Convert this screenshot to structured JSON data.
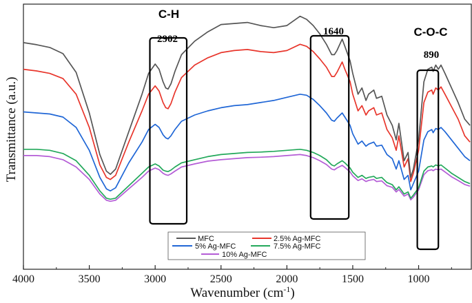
{
  "chart_data": {
    "type": "line",
    "title": "",
    "xlabel": "Wavenumber (cm",
    "xlabel_sup": "-1",
    "xlabel_close": ")",
    "ylabel": "Transmittance (a.u.)",
    "xlim": [
      4000,
      600
    ],
    "ylim": [
      0,
      1
    ],
    "y_ticks_shown": false,
    "x_ticks": [
      4000,
      3500,
      3000,
      2500,
      2000,
      1500,
      1000
    ],
    "x_tick_labels": [
      "4000",
      "3500",
      "3000",
      "2500",
      "2000",
      "1500",
      "1000"
    ],
    "annotations": [
      {
        "label": "C-H",
        "peak": "2902",
        "range": [
          3040,
          2760
        ]
      },
      {
        "label": "",
        "peak": "1640",
        "range": [
          1820,
          1530
        ]
      },
      {
        "label": "C-O-C",
        "peak": "890",
        "range": [
          1010,
          850
        ]
      }
    ],
    "legend_position": "bottom-center",
    "series": [
      {
        "name": "MFC",
        "color": "#555555",
        "x": [
          4000,
          3900,
          3800,
          3700,
          3600,
          3500,
          3420,
          3370,
          3340,
          3300,
          3200,
          3100,
          3050,
          3000,
          2970,
          2940,
          2920,
          2902,
          2880,
          2850,
          2800,
          2700,
          2600,
          2500,
          2400,
          2300,
          2200,
          2100,
          2000,
          1900,
          1850,
          1800,
          1750,
          1700,
          1660,
          1640,
          1620,
          1580,
          1560,
          1520,
          1500,
          1460,
          1430,
          1400,
          1380,
          1340,
          1320,
          1280,
          1240,
          1200,
          1170,
          1150,
          1110,
          1080,
          1060,
          1040,
          1000,
          960,
          930,
          900,
          890,
          870,
          850,
          830,
          800,
          750,
          700,
          650,
          610
        ],
        "y": [
          0.848,
          0.838,
          0.825,
          0.795,
          0.705,
          0.51,
          0.31,
          0.23,
          0.215,
          0.24,
          0.42,
          0.6,
          0.7,
          0.745,
          0.72,
          0.66,
          0.63,
          0.625,
          0.65,
          0.71,
          0.79,
          0.855,
          0.9,
          0.935,
          0.94,
          0.945,
          0.93,
          0.92,
          0.93,
          0.975,
          0.96,
          0.93,
          0.89,
          0.84,
          0.79,
          0.79,
          0.81,
          0.865,
          0.83,
          0.76,
          0.7,
          0.6,
          0.63,
          0.57,
          0.6,
          0.62,
          0.58,
          0.59,
          0.5,
          0.45,
          0.38,
          0.46,
          0.28,
          0.32,
          0.2,
          0.24,
          0.38,
          0.66,
          0.72,
          0.73,
          0.71,
          0.74,
          0.72,
          0.74,
          0.7,
          0.63,
          0.56,
          0.48,
          0.45
        ]
      },
      {
        "name": "2.5% Ag-MFC",
        "color": "#e8352b",
        "x": [
          4000,
          3900,
          3800,
          3700,
          3600,
          3500,
          3420,
          3370,
          3340,
          3300,
          3200,
          3100,
          3050,
          3000,
          2970,
          2940,
          2920,
          2902,
          2880,
          2850,
          2800,
          2700,
          2600,
          2500,
          2400,
          2300,
          2200,
          2100,
          2000,
          1900,
          1850,
          1800,
          1750,
          1700,
          1660,
          1640,
          1620,
          1580,
          1560,
          1520,
          1500,
          1460,
          1430,
          1400,
          1380,
          1340,
          1320,
          1280,
          1240,
          1200,
          1170,
          1150,
          1110,
          1080,
          1060,
          1040,
          1000,
          960,
          930,
          900,
          890,
          870,
          850,
          830,
          800,
          750,
          700,
          650,
          610
        ],
        "y": [
          0.72,
          0.712,
          0.7,
          0.675,
          0.6,
          0.44,
          0.26,
          0.2,
          0.19,
          0.21,
          0.37,
          0.52,
          0.6,
          0.64,
          0.615,
          0.56,
          0.535,
          0.53,
          0.555,
          0.61,
          0.68,
          0.74,
          0.775,
          0.8,
          0.81,
          0.815,
          0.805,
          0.8,
          0.81,
          0.84,
          0.83,
          0.805,
          0.77,
          0.73,
          0.685,
          0.685,
          0.705,
          0.755,
          0.72,
          0.66,
          0.6,
          0.52,
          0.545,
          0.5,
          0.52,
          0.535,
          0.5,
          0.51,
          0.43,
          0.39,
          0.33,
          0.4,
          0.25,
          0.29,
          0.18,
          0.22,
          0.33,
          0.56,
          0.61,
          0.62,
          0.6,
          0.63,
          0.62,
          0.635,
          0.6,
          0.54,
          0.48,
          0.4,
          0.37
        ]
      },
      {
        "name": "5% Ag-MFC",
        "color": "#1f66d6",
        "x": [
          4000,
          3900,
          3800,
          3700,
          3600,
          3500,
          3420,
          3370,
          3340,
          3300,
          3200,
          3100,
          3050,
          3000,
          2970,
          2940,
          2920,
          2902,
          2880,
          2850,
          2800,
          2700,
          2600,
          2500,
          2400,
          2300,
          2200,
          2100,
          2000,
          1900,
          1850,
          1800,
          1750,
          1700,
          1660,
          1640,
          1620,
          1580,
          1560,
          1520,
          1500,
          1460,
          1430,
          1400,
          1380,
          1340,
          1320,
          1280,
          1240,
          1200,
          1170,
          1150,
          1110,
          1080,
          1060,
          1040,
          1000,
          960,
          930,
          900,
          890,
          870,
          850,
          830,
          800,
          750,
          700,
          650,
          610
        ],
        "y": [
          0.515,
          0.51,
          0.505,
          0.49,
          0.44,
          0.33,
          0.2,
          0.145,
          0.135,
          0.15,
          0.27,
          0.37,
          0.43,
          0.455,
          0.44,
          0.405,
          0.39,
          0.385,
          0.4,
          0.43,
          0.47,
          0.5,
          0.52,
          0.535,
          0.545,
          0.55,
          0.56,
          0.57,
          0.585,
          0.6,
          0.595,
          0.575,
          0.545,
          0.51,
          0.475,
          0.47,
          0.485,
          0.51,
          0.49,
          0.45,
          0.41,
          0.36,
          0.375,
          0.35,
          0.36,
          0.37,
          0.35,
          0.355,
          0.31,
          0.29,
          0.24,
          0.28,
          0.19,
          0.21,
          0.14,
          0.17,
          0.23,
          0.38,
          0.42,
          0.43,
          0.415,
          0.435,
          0.43,
          0.44,
          0.42,
          0.38,
          0.34,
          0.3,
          0.28
        ]
      },
      {
        "name": "7.5% Ag-MFC",
        "color": "#22a85a",
        "x": [
          4000,
          3900,
          3800,
          3700,
          3600,
          3500,
          3420,
          3370,
          3340,
          3300,
          3200,
          3100,
          3050,
          3000,
          2970,
          2940,
          2920,
          2902,
          2880,
          2850,
          2800,
          2700,
          2600,
          2500,
          2400,
          2300,
          2200,
          2100,
          2000,
          1900,
          1850,
          1800,
          1750,
          1700,
          1660,
          1640,
          1620,
          1580,
          1560,
          1520,
          1500,
          1460,
          1430,
          1400,
          1380,
          1340,
          1320,
          1280,
          1240,
          1200,
          1170,
          1150,
          1110,
          1080,
          1060,
          1040,
          1000,
          960,
          930,
          900,
          890,
          870,
          850,
          830,
          800,
          750,
          700,
          650,
          610
        ],
        "y": [
          0.335,
          0.335,
          0.33,
          0.315,
          0.28,
          0.21,
          0.135,
          0.1,
          0.095,
          0.1,
          0.16,
          0.22,
          0.25,
          0.265,
          0.255,
          0.235,
          0.23,
          0.228,
          0.235,
          0.25,
          0.27,
          0.285,
          0.3,
          0.31,
          0.315,
          0.32,
          0.322,
          0.325,
          0.33,
          0.335,
          0.33,
          0.32,
          0.305,
          0.285,
          0.26,
          0.255,
          0.265,
          0.28,
          0.27,
          0.245,
          0.225,
          0.2,
          0.21,
          0.195,
          0.2,
          0.205,
          0.195,
          0.2,
          0.175,
          0.165,
          0.14,
          0.155,
          0.12,
          0.13,
          0.1,
          0.115,
          0.15,
          0.23,
          0.25,
          0.255,
          0.25,
          0.26,
          0.255,
          0.26,
          0.245,
          0.22,
          0.2,
          0.18,
          0.17
        ]
      },
      {
        "name": "10% Ag-MFC",
        "color": "#b45cd6",
        "x": [
          4000,
          3900,
          3800,
          3700,
          3600,
          3500,
          3420,
          3370,
          3340,
          3300,
          3200,
          3100,
          3050,
          3000,
          2970,
          2940,
          2920,
          2902,
          2880,
          2850,
          2800,
          2700,
          2600,
          2500,
          2400,
          2300,
          2200,
          2100,
          2000,
          1900,
          1850,
          1800,
          1750,
          1700,
          1660,
          1640,
          1620,
          1580,
          1560,
          1520,
          1500,
          1460,
          1430,
          1400,
          1380,
          1340,
          1320,
          1280,
          1240,
          1200,
          1170,
          1150,
          1110,
          1080,
          1060,
          1040,
          1000,
          960,
          930,
          900,
          890,
          870,
          850,
          830,
          800,
          750,
          700,
          650,
          610
        ],
        "y": [
          0.305,
          0.305,
          0.3,
          0.285,
          0.25,
          0.19,
          0.12,
          0.09,
          0.085,
          0.09,
          0.145,
          0.2,
          0.23,
          0.245,
          0.237,
          0.22,
          0.213,
          0.21,
          0.217,
          0.23,
          0.25,
          0.265,
          0.278,
          0.285,
          0.29,
          0.295,
          0.297,
          0.3,
          0.305,
          0.31,
          0.305,
          0.295,
          0.28,
          0.262,
          0.24,
          0.236,
          0.245,
          0.258,
          0.248,
          0.226,
          0.208,
          0.185,
          0.193,
          0.18,
          0.185,
          0.19,
          0.18,
          0.183,
          0.16,
          0.152,
          0.13,
          0.142,
          0.11,
          0.12,
          0.092,
          0.105,
          0.14,
          0.213,
          0.232,
          0.237,
          0.232,
          0.24,
          0.236,
          0.24,
          0.226,
          0.203,
          0.185,
          0.166,
          0.158
        ]
      }
    ]
  }
}
